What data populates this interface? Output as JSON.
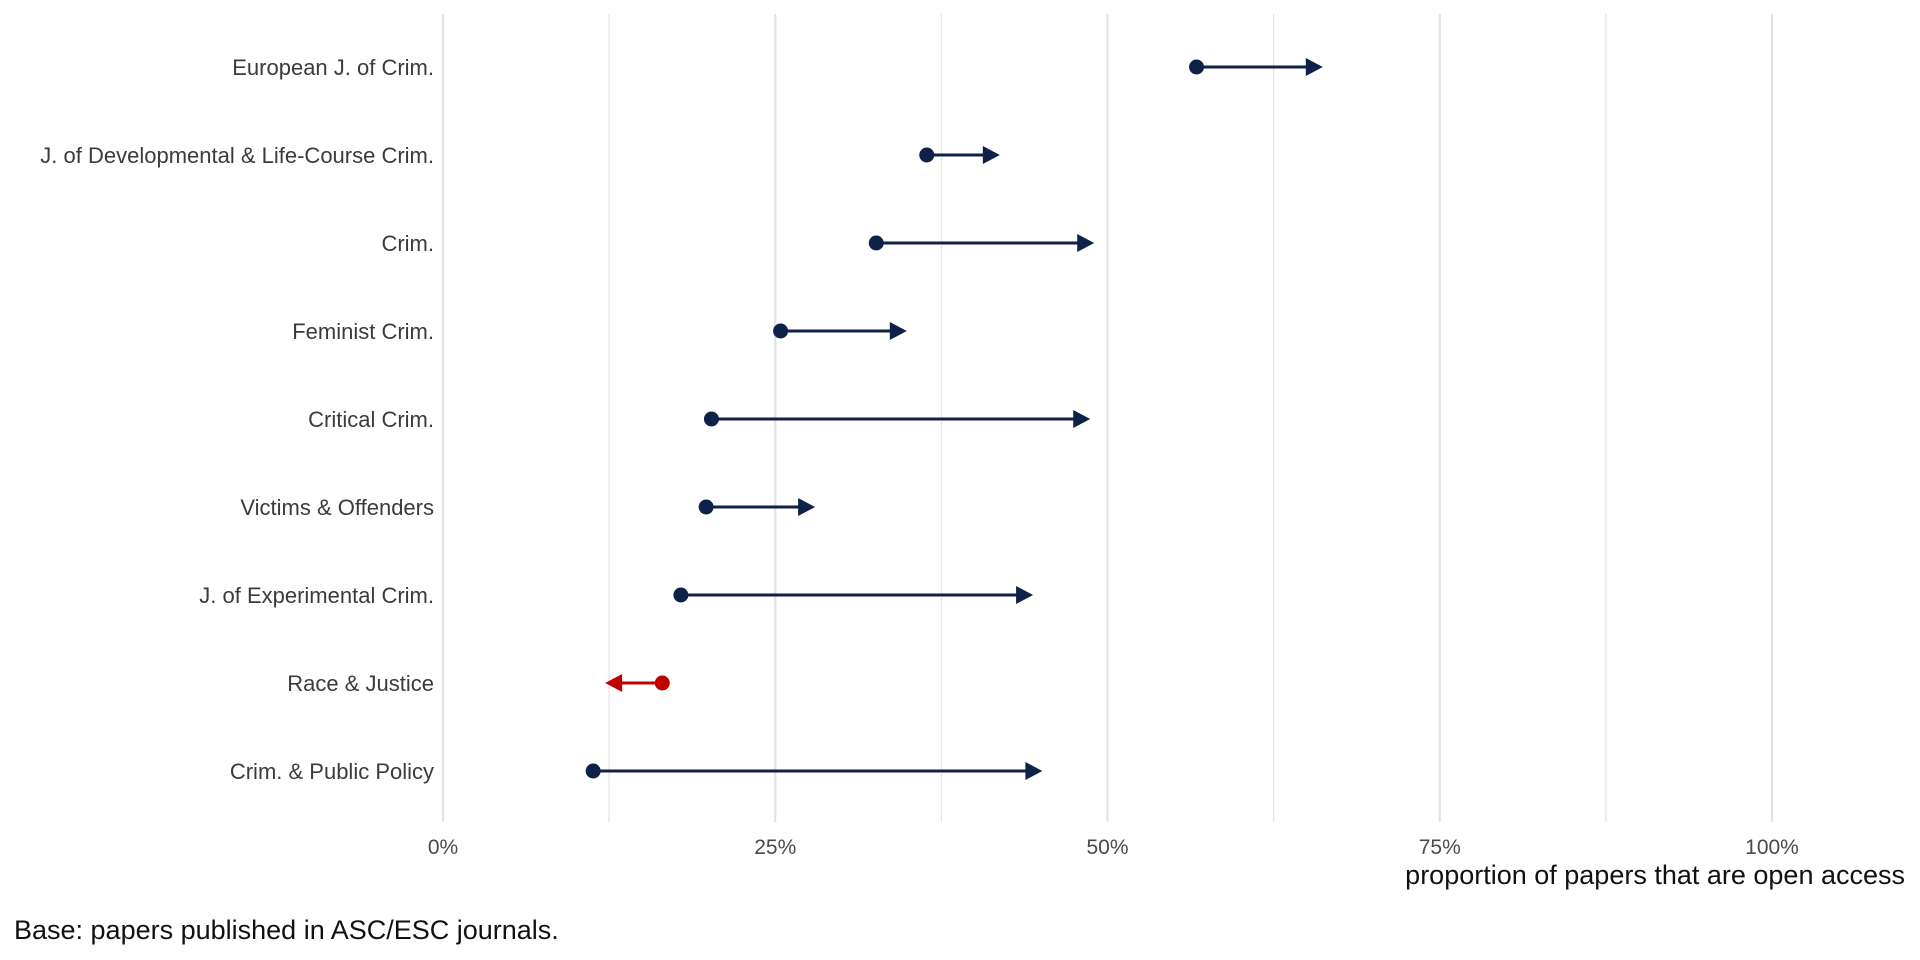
{
  "chart_data": {
    "type": "dumbbell-arrow",
    "xlabel": "proportion of papers that are open access",
    "caption": "Base: papers published in ASC/ESC journals.",
    "xlim": [
      0,
      1
    ],
    "x_ticks": [
      0,
      0.25,
      0.5,
      0.75,
      1.0
    ],
    "x_tick_labels": [
      "0%",
      "25%",
      "50%",
      "75%",
      "100%"
    ],
    "grid": true,
    "colors": {
      "increase": "#0d2149",
      "decrease": "#c00000",
      "grid": "#e3e3e3"
    },
    "categories": [
      "European J. of Crim.",
      "J. of Developmental & Life-Course Crim.",
      "Crim.",
      "Feminist Crim.",
      "Critical Crim.",
      "Victims & Offenders",
      "J. of Experimental Crim.",
      "Race & Justice",
      "Crim. & Public Policy"
    ],
    "start": [
      0.567,
      0.364,
      0.326,
      0.254,
      0.202,
      0.198,
      0.179,
      0.165,
      0.113
    ],
    "end": [
      0.662,
      0.419,
      0.49,
      0.349,
      0.487,
      0.28,
      0.444,
      0.122,
      0.451
    ]
  }
}
